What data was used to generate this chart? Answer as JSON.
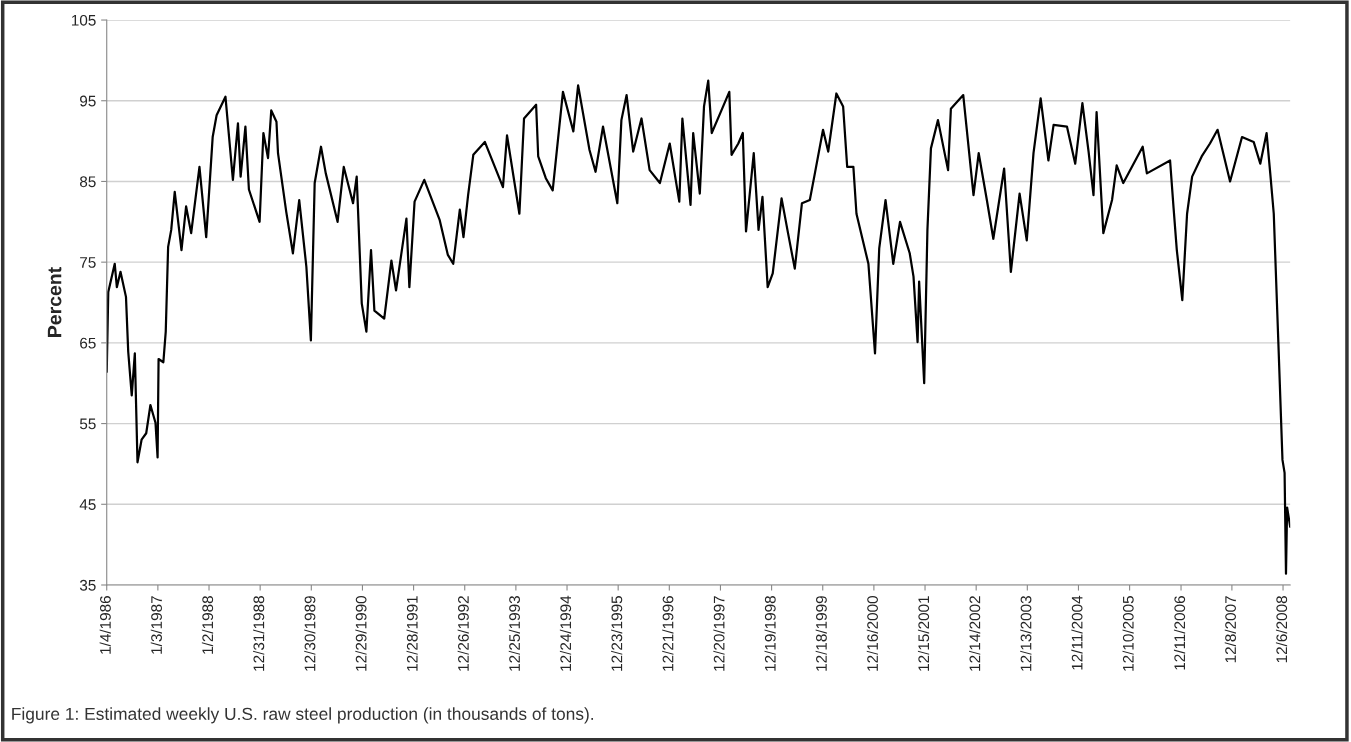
{
  "chart_data": {
    "type": "line",
    "ylabel": "Percent",
    "annotations": [
      "Figure 1: Estimated weekly U.S. raw steel production (in thousands of tons)."
    ],
    "xlim": [
      "1986-01-04",
      "2009-01-26"
    ],
    "ylim": [
      35,
      105
    ],
    "yticks": [
      35,
      45,
      55,
      65,
      75,
      85,
      95,
      105
    ],
    "xticks": [
      {
        "value": "1986-01-04",
        "label": "1/4/1986"
      },
      {
        "value": "1987-01-03",
        "label": "1/3/1987"
      },
      {
        "value": "1988-01-02",
        "label": "1/2/1988"
      },
      {
        "value": "1988-12-31",
        "label": "12/31/1988"
      },
      {
        "value": "1989-12-30",
        "label": "12/30/1989"
      },
      {
        "value": "1990-12-29",
        "label": "12/29/1990"
      },
      {
        "value": "1991-12-28",
        "label": "12/28/1991"
      },
      {
        "value": "1992-12-26",
        "label": "12/26/1992"
      },
      {
        "value": "1993-12-25",
        "label": "12/25/1993"
      },
      {
        "value": "1994-12-24",
        "label": "12/24/1994"
      },
      {
        "value": "1995-12-23",
        "label": "12/23/1995"
      },
      {
        "value": "1996-12-21",
        "label": "12/21/1996"
      },
      {
        "value": "1997-12-20",
        "label": "12/20/1997"
      },
      {
        "value": "1998-12-19",
        "label": "12/19/1998"
      },
      {
        "value": "1999-12-18",
        "label": "12/18/1999"
      },
      {
        "value": "2000-12-16",
        "label": "12/16/2000"
      },
      {
        "value": "2001-12-15",
        "label": "12/15/2001"
      },
      {
        "value": "2002-12-14",
        "label": "12/14/2002"
      },
      {
        "value": "2003-12-13",
        "label": "12/13/2003"
      },
      {
        "value": "2004-12-11",
        "label": "12/11/2004"
      },
      {
        "value": "2005-12-10",
        "label": "12/10/2005"
      },
      {
        "value": "2006-12-11",
        "label": "12/11/2006"
      },
      {
        "value": "2007-12-08",
        "label": "12/8/2007"
      },
      {
        "value": "2008-12-06",
        "label": "12/6/2008"
      }
    ],
    "grid": "y",
    "line_style": "solid",
    "series": [
      {
        "color": "#000000",
        "x": [
          "1986-01-04",
          "1986-01-15",
          "1986-03-02",
          "1986-03-17",
          "1986-04-12",
          "1986-05-21",
          "1986-06-06",
          "1986-07-01",
          "1986-07-23",
          "1986-08-11",
          "1986-09-09",
          "1986-10-12",
          "1986-11-11",
          "1986-12-17",
          "1987-01-01",
          "1987-01-08",
          "1987-02-11",
          "1987-02-28",
          "1987-03-17",
          "1987-04-08",
          "1987-05-03",
          "1987-06-20",
          "1987-07-23",
          "1987-08-28",
          "1987-10-26",
          "1987-12-13",
          "1988-01-28",
          "1988-02-25",
          "1988-04-28",
          "1988-06-20",
          "1988-07-26",
          "1988-08-14",
          "1988-09-17",
          "1988-10-12",
          "1988-12-27",
          "1989-01-23",
          "1989-02-25",
          "1989-03-20",
          "1989-04-26",
          "1989-05-07",
          "1989-07-05",
          "1989-08-21",
          "1989-10-05",
          "1989-11-25",
          "1989-12-27",
          "1990-01-23",
          "1990-03-09",
          "1990-04-12",
          "1990-07-05",
          "1990-08-18",
          "1990-10-23",
          "1990-11-18",
          "1990-12-24",
          "1991-01-26",
          "1991-02-28",
          "1991-03-24",
          "1991-06-02",
          "1991-07-23",
          "1991-08-25",
          "1991-11-07",
          "1991-11-28",
          "1992-01-04",
          "1992-03-13",
          "1992-07-01",
          "1992-08-28",
          "1992-10-05",
          "1992-11-21",
          "1992-12-17",
          "1993-01-19",
          "1993-02-25",
          "1993-05-18",
          "1993-09-24",
          "1993-10-23",
          "1994-01-19",
          "1994-02-21",
          "1994-05-18",
          "1994-06-02",
          "1994-07-26",
          "1994-09-13",
          "1994-11-25",
          "1995-02-07",
          "1995-03-13",
          "1995-06-02",
          "1995-07-15",
          "1995-09-06",
          "1995-12-17",
          "1996-01-15",
          "1996-02-21",
          "1996-04-08",
          "1996-06-06",
          "1996-08-03",
          "1996-10-15",
          "1996-12-24",
          "1997-03-02",
          "1997-03-24",
          "1997-05-21",
          "1997-06-09",
          "1997-07-26",
          "1997-08-25",
          "1997-09-24",
          "1997-10-19",
          "1997-12-27",
          "1998-02-21",
          "1998-03-09",
          "1998-04-26",
          "1998-05-28",
          "1998-06-20",
          "1998-08-14",
          "1998-09-17",
          "1998-10-15",
          "1998-11-21",
          "1998-12-27",
          "1999-02-28",
          "1999-04-15",
          "1999-06-02",
          "1999-07-23",
          "1999-09-17",
          "1999-10-23",
          "1999-12-20",
          "2000-01-26",
          "2000-03-24",
          "2000-05-11",
          "2000-06-09",
          "2000-07-23",
          "2000-08-14",
          "2000-11-07",
          "2000-12-24",
          "2001-01-23",
          "2001-03-09",
          "2001-05-03",
          "2001-06-20",
          "2001-08-28",
          "2001-09-24",
          "2001-10-23",
          "2001-11-03",
          "2001-12-09",
          "2002-01-01",
          "2002-01-26",
          "2002-03-17",
          "2002-05-28",
          "2002-06-17",
          "2002-09-13",
          "2002-11-25",
          "2003-01-01",
          "2003-02-28",
          "2003-04-15",
          "2003-07-01",
          "2003-08-18",
          "2003-10-19",
          "2003-12-09",
          "2004-01-26",
          "2004-03-17",
          "2004-05-11",
          "2004-06-17",
          "2004-09-20",
          "2004-11-18",
          "2005-01-08",
          "2005-02-21",
          "2005-03-28",
          "2005-04-19",
          "2005-06-06",
          "2005-08-07",
          "2005-09-09",
          "2005-10-26",
          "2006-03-13",
          "2006-04-12",
          "2006-09-24",
          "2006-10-19",
          "2006-11-11",
          "2006-12-20",
          "2007-01-23",
          "2007-02-28",
          "2007-05-07",
          "2007-07-05",
          "2007-08-28",
          "2007-11-25",
          "2008-02-18",
          "2008-05-11",
          "2008-06-27",
          "2008-08-11",
          "2008-09-06",
          "2008-10-01",
          "2008-11-03",
          "2008-12-02",
          "2008-12-17",
          "2008-12-27",
          "2009-01-04",
          "2009-01-26"
        ],
        "values": [
          61.4,
          71.3,
          74.8,
          71.9,
          73.8,
          70.7,
          63.9,
          58.5,
          63.7,
          50.2,
          53.0,
          53.8,
          57.3,
          55.1,
          50.8,
          63.0,
          62.6,
          66.4,
          76.9,
          79.0,
          83.7,
          76.5,
          81.9,
          78.6,
          86.8,
          78.1,
          90.5,
          93.2,
          95.5,
          85.2,
          92.2,
          85.6,
          91.8,
          84.0,
          80.0,
          91.0,
          87.9,
          93.8,
          92.4,
          88.5,
          81.2,
          76.1,
          82.7,
          74.4,
          65.3,
          84.8,
          89.3,
          86.0,
          80.0,
          86.8,
          82.3,
          85.6,
          69.9,
          66.4,
          76.5,
          69.0,
          68.0,
          75.2,
          71.5,
          80.4,
          71.9,
          82.5,
          85.2,
          80.2,
          75.9,
          74.8,
          81.5,
          78.1,
          83.3,
          88.3,
          89.9,
          84.3,
          90.7,
          81.0,
          92.8,
          94.5,
          88.1,
          85.4,
          83.9,
          96.1,
          91.2,
          96.9,
          88.9,
          86.2,
          91.8,
          82.3,
          92.6,
          95.7,
          88.7,
          92.8,
          86.4,
          84.8,
          89.7,
          82.5,
          92.8,
          82.1,
          91.0,
          83.5,
          94.3,
          97.5,
          91.0,
          93.8,
          96.1,
          88.3,
          89.7,
          91.0,
          78.8,
          88.5,
          79.0,
          83.1,
          71.9,
          73.6,
          82.9,
          78.6,
          74.2,
          82.3,
          82.7,
          86.0,
          91.4,
          88.7,
          95.9,
          94.3,
          86.8,
          86.8,
          81.0,
          74.8,
          63.7,
          76.7,
          82.7,
          74.8,
          80.0,
          76.1,
          73.2,
          65.1,
          72.6,
          60.0,
          79.0,
          89.1,
          92.6,
          86.4,
          94.0,
          95.7,
          83.3,
          88.5,
          82.7,
          77.9,
          86.6,
          73.8,
          83.5,
          77.7,
          88.5,
          95.3,
          87.6,
          92.0,
          91.8,
          87.2,
          94.7,
          88.7,
          83.3,
          93.6,
          78.6,
          82.7,
          87.0,
          84.8,
          89.3,
          86.0,
          87.6,
          81.7,
          76.5,
          70.3,
          81.0,
          85.6,
          88.1,
          89.7,
          91.4,
          85.0,
          90.5,
          89.9,
          87.2,
          91.0,
          86.0,
          81.0,
          64.9,
          50.5,
          48.9,
          36.4,
          44.6,
          42.2
        ]
      }
    ]
  }
}
